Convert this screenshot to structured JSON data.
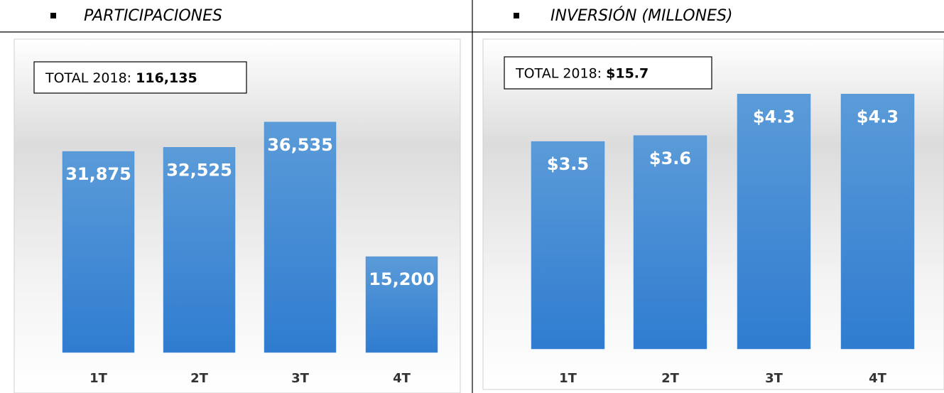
{
  "chart_data": [
    {
      "type": "bar",
      "title": "PARTICIPACIONES",
      "total": {
        "label": "TOTAL 2018:",
        "value": "116,135"
      },
      "categories": [
        "1T",
        "2T",
        "3T",
        "4T"
      ],
      "values": [
        31875,
        32525,
        36535,
        15200
      ],
      "value_labels": [
        "31,875",
        "32,525",
        "36,535",
        "15,200"
      ],
      "color": "#4a8fd6",
      "ylim": [
        0,
        40000
      ]
    },
    {
      "type": "bar",
      "title": "INVERSIÓN (MILLONES)",
      "total": {
        "label": "TOTAL 2018:",
        "value": "$15.7"
      },
      "categories": [
        "1T",
        "2T",
        "3T",
        "4T"
      ],
      "values": [
        3.5,
        3.6,
        4.3,
        4.3
      ],
      "value_labels": [
        "$3.5",
        "$3.6",
        "$4.3",
        "$4.3"
      ],
      "color": "#4a8fd6",
      "ylim": [
        0,
        5
      ]
    }
  ]
}
